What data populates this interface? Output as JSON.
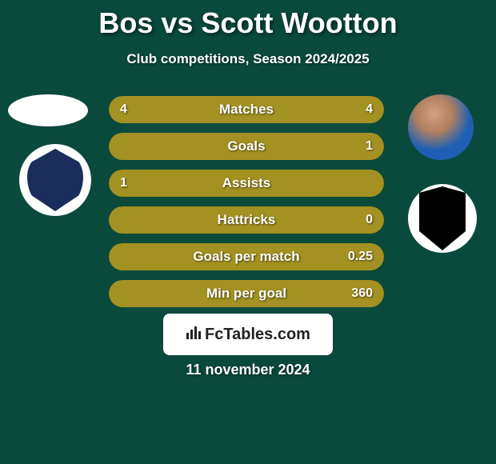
{
  "title": "Bos vs Scott Wootton",
  "subtitle": "Club competitions, Season 2024/2025",
  "date": "11 november 2024",
  "branding": "FcTables.com",
  "colors": {
    "background": "#0a4a3c",
    "bar_full": "#a39121",
    "bar_empty": "#5a4f15",
    "text": "#ffffff"
  },
  "stats": [
    {
      "label": "Matches",
      "left_val": "4",
      "right_val": "4",
      "left_pct": 50,
      "right_pct": 50,
      "show_left": true,
      "show_right": true
    },
    {
      "label": "Goals",
      "left_val": "",
      "right_val": "1",
      "left_pct": 0,
      "right_pct": 100,
      "show_left": false,
      "show_right": true
    },
    {
      "label": "Assists",
      "left_val": "1",
      "right_val": "",
      "left_pct": 100,
      "right_pct": 0,
      "show_left": true,
      "show_right": false
    },
    {
      "label": "Hattricks",
      "left_val": "",
      "right_val": "0",
      "left_pct": 0,
      "right_pct": 100,
      "show_left": false,
      "show_right": true
    },
    {
      "label": "Goals per match",
      "left_val": "",
      "right_val": "0.25",
      "left_pct": 0,
      "right_pct": 100,
      "show_left": false,
      "show_right": true
    },
    {
      "label": "Min per goal",
      "left_val": "",
      "right_val": "360",
      "left_pct": 0,
      "right_pct": 100,
      "show_left": false,
      "show_right": true
    }
  ]
}
